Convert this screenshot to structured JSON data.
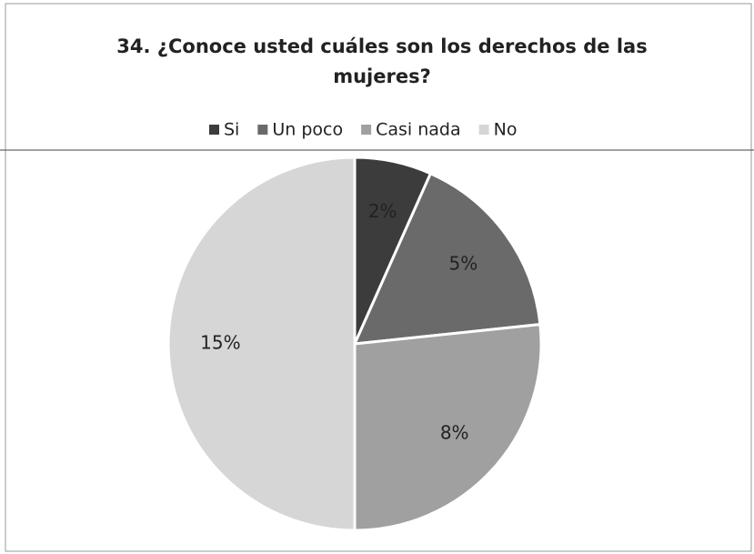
{
  "chart_data": {
    "type": "pie",
    "title": "34. ¿Conoce usted cuáles son los derechos de las mujeres?",
    "categories": [
      "Si",
      "Un poco",
      "Casi nada",
      "No"
    ],
    "values": [
      2,
      5,
      8,
      15
    ],
    "value_labels": [
      "2%",
      "5%",
      "8%",
      "15%"
    ],
    "colors": [
      "#3c3c3c",
      "#6a6a6a",
      "#a0a0a0",
      "#d6d6d6"
    ],
    "legend": "top"
  }
}
